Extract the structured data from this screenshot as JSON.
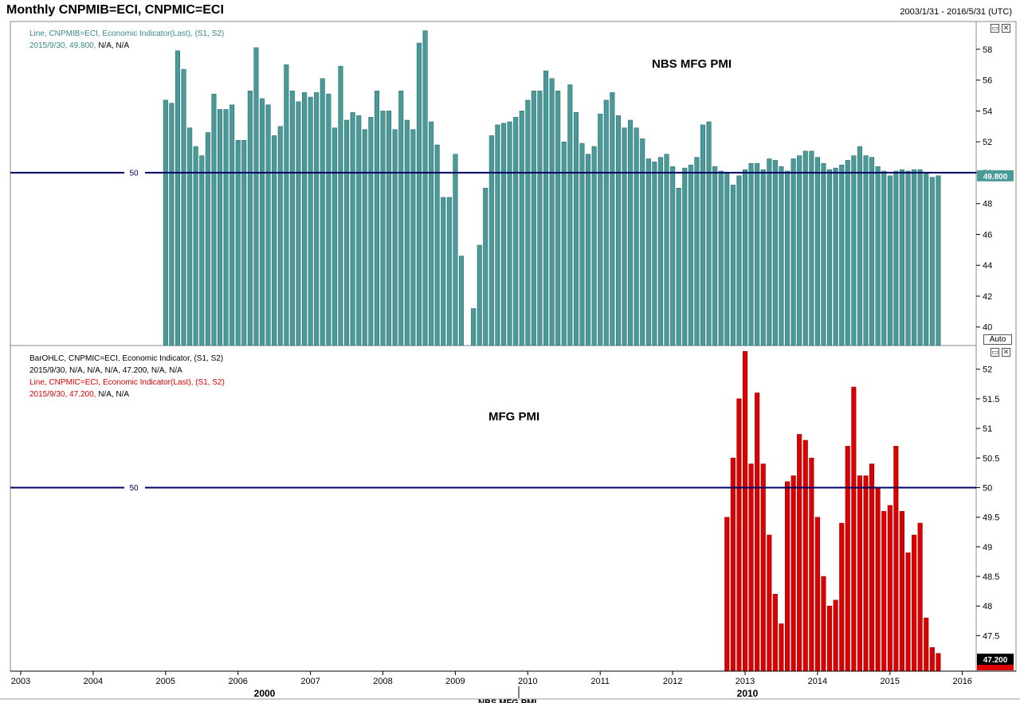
{
  "header": {
    "title": "Monthly CNPMIB=ECI, CNPMIC=ECI",
    "date_range": "2003/1/31 - 2016/5/31 (UTC)"
  },
  "top_legend": {
    "line1": "Line, CNPMIB=ECI, Economic Indicator(Last), (S1, S2)",
    "line2_value": "2015/9/30, 49.800,",
    "line2_rest": "N/A, N/A"
  },
  "bottom_legend": {
    "line1": "BarOHLC, CNPMIC=ECI, Economic Indicator, (S1, S2)",
    "line2": "2015/9/30, N/A, N/A, N/A, 47.200, N/A, N/A",
    "line3": "Line, CNPMIC=ECI, Economic Indicator(Last), (S1, S2)",
    "line4_value": "2015/9/30, 47.200,",
    "line4_rest": "N/A, N/A"
  },
  "annotations": {
    "top": "NBS MFG PMI",
    "bottom": "MFG PMI"
  },
  "buttons": {
    "auto": "Auto"
  },
  "bottom_stub": "NBS MFG PMI",
  "colors": {
    "top_bar": "#4a9a99",
    "bottom_bar": "#dd0000",
    "ref_line": "#000066"
  },
  "chart_data": [
    {
      "type": "bar",
      "name": "CNPMIB=ECI",
      "start": "2005-01",
      "frequency": "monthly",
      "y_ticks": [
        40,
        42,
        44,
        46,
        48,
        50,
        52,
        54,
        56,
        58
      ],
      "ylim": [
        38.8,
        59.8
      ],
      "reference_line": 50,
      "reference_label": "50",
      "last_value_label": "49.800",
      "values": [
        54.7,
        54.5,
        57.9,
        56.7,
        52.9,
        51.7,
        51.1,
        52.6,
        55.1,
        54.1,
        54.1,
        54.4,
        52.1,
        52.1,
        55.3,
        58.1,
        54.8,
        54.4,
        52.4,
        53.0,
        57.0,
        55.3,
        54.6,
        55.2,
        54.9,
        55.2,
        56.1,
        55.1,
        52.9,
        56.9,
        53.4,
        53.9,
        53.7,
        52.8,
        53.6,
        55.3,
        54.0,
        54.0,
        52.8,
        55.3,
        53.4,
        52.8,
        58.4,
        59.2,
        53.3,
        51.8,
        48.4,
        48.4,
        51.2,
        44.6,
        38.8,
        41.2,
        45.3,
        49.0,
        52.4,
        53.1,
        53.2,
        53.3,
        53.6,
        54.0,
        54.7,
        55.3,
        55.3,
        56.6,
        56.1,
        55.3,
        52.0,
        55.7,
        53.9,
        51.9,
        51.2,
        51.7,
        53.8,
        54.7,
        55.2,
        53.7,
        52.9,
        53.4,
        52.9,
        52.2,
        50.9,
        50.7,
        51.0,
        51.2,
        50.4,
        49.0,
        50.3,
        50.5,
        51.0,
        53.1,
        53.3,
        50.4,
        50.1,
        50.0,
        49.2,
        49.8,
        50.2,
        50.6,
        50.6,
        50.2,
        50.9,
        50.8,
        50.4,
        50.1,
        50.9,
        51.1,
        51.4,
        51.4,
        51.0,
        50.6,
        50.2,
        50.3,
        50.5,
        50.8,
        51.1,
        51.7,
        51.1,
        51.0,
        50.4,
        50.1,
        49.8,
        50.1,
        50.2,
        50.1,
        50.2,
        50.2,
        50.0,
        49.7,
        49.8
      ],
      "x_ticks": [
        "2003",
        "2004",
        "2005",
        "2006",
        "2007",
        "2008",
        "2009",
        "2010",
        "2011",
        "2012",
        "2013",
        "2014",
        "2015",
        "2016"
      ]
    },
    {
      "type": "bar",
      "name": "CNPMIC=ECI",
      "start": "2012-10",
      "frequency": "monthly",
      "y_ticks": [
        47.5,
        48,
        48.5,
        49,
        49.5,
        50,
        50.5,
        51,
        51.5,
        52
      ],
      "y_tick_labels": [
        "47.5",
        "48",
        "48.5",
        "49",
        "49.5",
        "50",
        "50.5",
        "51",
        "51.5",
        "52"
      ],
      "ylim": [
        46.9,
        52.4
      ],
      "reference_line": 50,
      "reference_label": "50",
      "last_value_label": "47.200",
      "values": [
        49.5,
        50.5,
        51.5,
        52.3,
        50.4,
        51.6,
        50.4,
        49.2,
        48.2,
        47.7,
        50.1,
        50.2,
        50.9,
        50.8,
        50.5,
        49.5,
        48.5,
        48.0,
        48.1,
        49.4,
        50.7,
        51.7,
        50.2,
        50.2,
        50.4,
        50.0,
        49.6,
        49.7,
        50.7,
        49.6,
        48.9,
        49.2,
        49.4,
        47.8,
        47.3,
        47.2
      ],
      "x_ticks": [
        "2003",
        "2004",
        "2005",
        "2006",
        "2007",
        "2008",
        "2009",
        "2010",
        "2011",
        "2012",
        "2013",
        "2014",
        "2015",
        "2016"
      ],
      "x_secondary": [
        "2000",
        "2010"
      ]
    }
  ]
}
